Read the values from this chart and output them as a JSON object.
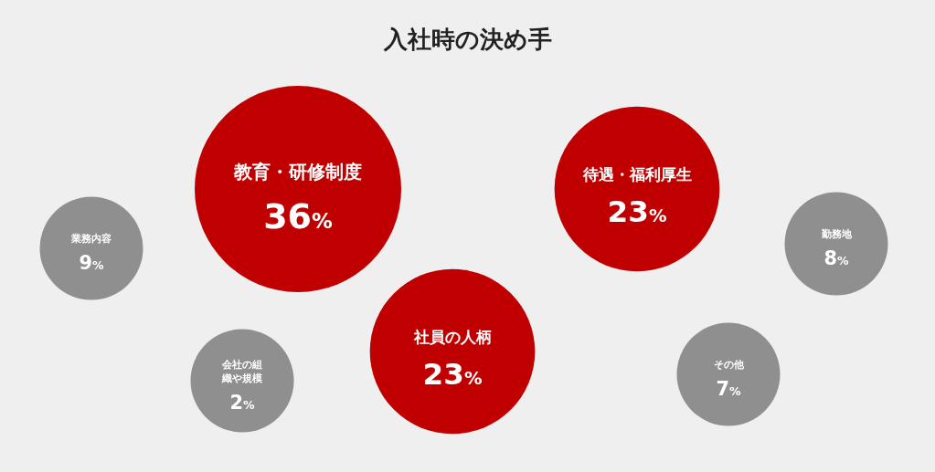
{
  "chart_data": {
    "type": "other",
    "title": "入社時の決め手",
    "categories": [
      "業務内容",
      "教育・研修制度",
      "会社の組織や規模",
      "社員の人柄",
      "待遇・福利厚生",
      "その他",
      "勤務地"
    ],
    "values": [
      9,
      36,
      2,
      23,
      23,
      7,
      8
    ],
    "value_labels": [
      "9%",
      "36%",
      "2%",
      "23%",
      "23%",
      "7%",
      "8%"
    ],
    "colors": [
      "#8f8f8f",
      "#c00000",
      "#8f8f8f",
      "#c00000",
      "#c00000",
      "#8f8f8f",
      "#8f8f8f"
    ]
  }
}
